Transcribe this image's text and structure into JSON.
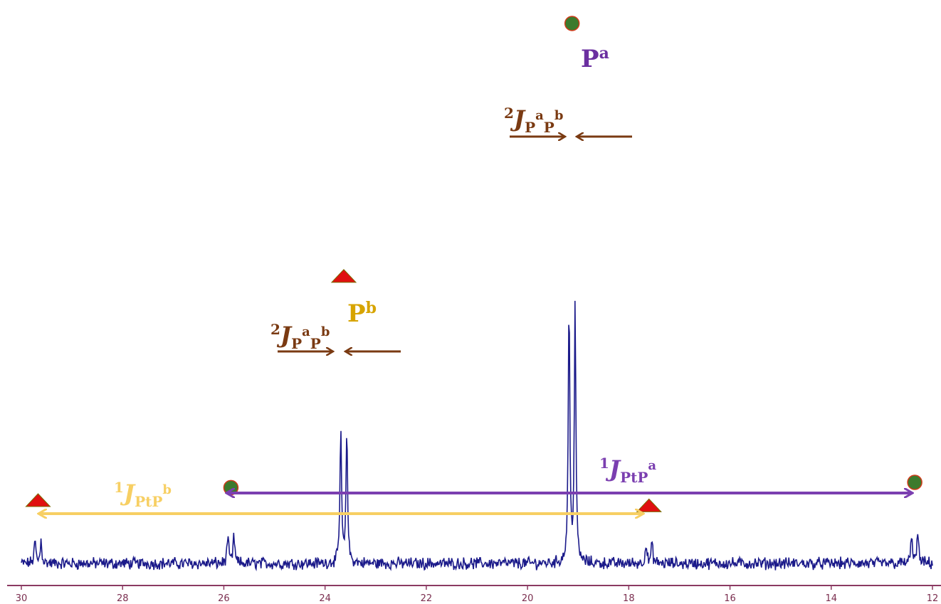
{
  "chart_data": {
    "type": "line",
    "xlim": [
      30,
      12
    ],
    "axis_reversed": true,
    "x_ticks": [
      30,
      28,
      26,
      24,
      22,
      20,
      18,
      16,
      14,
      12
    ],
    "x_tick_labels": [
      "30",
      "28",
      "26",
      "24",
      "22",
      "20",
      "18",
      "16",
      "14",
      "12"
    ],
    "grid": false,
    "colors": {
      "spectrum": "#1b1a8a",
      "axis": "#8b3a62",
      "pa_label": "#6b2fa0",
      "pb_label": "#d7a400",
      "j_pp_label": "#7a3a12",
      "j_ptpa": "#7b3fb0",
      "j_ptpb": "#f7cf63",
      "circle_marker": "#3c7a2d",
      "triangle_marker": "#e01010"
    },
    "peaks": [
      {
        "name": "Pa",
        "center_ppm": 19.12,
        "split_ppm": 0.12,
        "height": 1.0,
        "marker": "circle-marker"
      },
      {
        "name": "Pb",
        "center_ppm": 23.63,
        "split_ppm": 0.12,
        "height": 0.52,
        "marker": "triangle-marker"
      },
      {
        "name": "Pa satellite low",
        "center_ppm": 25.86,
        "split_ppm": 0.12,
        "height": 0.11,
        "marker": "circle-marker"
      },
      {
        "name": "Pa satellite high",
        "center_ppm": 12.35,
        "split_ppm": 0.12,
        "height": 0.12,
        "marker": "circle-marker"
      },
      {
        "name": "Pb satellite low",
        "center_ppm": 29.67,
        "split_ppm": 0.12,
        "height": 0.09,
        "marker": "triangle-marker"
      },
      {
        "name": "Pb satellite high",
        "center_ppm": 17.6,
        "split_ppm": 0.12,
        "height": 0.08,
        "marker": "triangle-marker"
      }
    ],
    "annotations": {
      "pa": {
        "base": "P",
        "sup": "a"
      },
      "pb": {
        "base": "P",
        "sup": "b"
      },
      "j_pp_pa": {
        "prefix": "2",
        "J": "J",
        "sub1": "P",
        "sup1": "a",
        "sub2": "P",
        "sup2": "b"
      },
      "j_pp_pb": {
        "prefix": "2",
        "J": "J",
        "sub1": "P",
        "sup1": "a",
        "sub2": "P",
        "sup2": "b"
      },
      "j_ptpa": {
        "prefix": "1",
        "J": "J",
        "sub": "PtP",
        "sup": "a"
      },
      "j_ptpb": {
        "prefix": "1",
        "J": "J",
        "sub": "PtP",
        "sup": "b"
      }
    }
  }
}
